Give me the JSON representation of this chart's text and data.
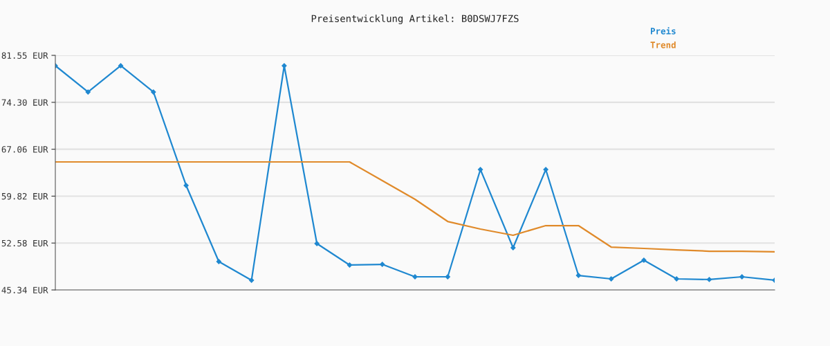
{
  "chart_data": {
    "type": "line",
    "title": "Preisentwicklung Artikel: B0DSWJ7FZS",
    "categories": [
      null,
      null,
      null,
      null,
      null,
      null,
      null,
      null,
      null,
      null,
      null,
      null,
      null,
      null,
      null,
      null,
      null,
      null,
      null,
      null,
      null,
      null,
      null
    ],
    "series": [
      {
        "name": "Preis",
        "color": "#1f88d0",
        "marker": "diamond",
        "values": [
          79.95,
          75.89,
          79.95,
          75.89,
          61.47,
          49.72,
          46.84,
          79.95,
          52.5,
          49.19,
          49.29,
          47.37,
          47.37,
          63.93,
          51.86,
          63.93,
          47.58,
          47.05,
          49.93,
          47.05,
          46.95,
          47.37,
          46.84
        ]
      },
      {
        "name": "Trend",
        "color": "#e08a2a",
        "marker": "none",
        "values": [
          65.1,
          65.1,
          65.1,
          65.1,
          65.1,
          65.1,
          65.1,
          65.1,
          65.1,
          65.1,
          62.22,
          59.33,
          55.91,
          54.74,
          53.78,
          55.27,
          55.27,
          51.96,
          51.75,
          51.53,
          51.32,
          51.32,
          51.22
        ]
      }
    ],
    "ylim": [
      45.34,
      81.55
    ],
    "yticks": [
      {
        "value": 45.34,
        "label": "45.34 EUR"
      },
      {
        "value": 52.58,
        "label": "52.58 EUR"
      },
      {
        "value": 59.82,
        "label": "59.82 EUR"
      },
      {
        "value": 67.06,
        "label": "67.06 EUR"
      },
      {
        "value": 74.3,
        "label": "74.30 EUR"
      },
      {
        "value": 81.55,
        "label": "81.55 EUR"
      }
    ],
    "grid": "y",
    "legend": "top right",
    "tick_labels": "y",
    "line_style": "solid"
  }
}
